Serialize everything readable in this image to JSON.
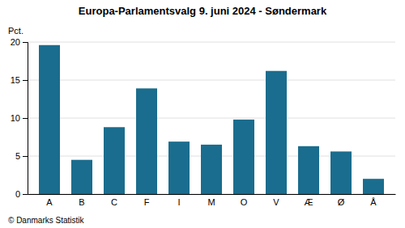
{
  "chart_data": {
    "type": "bar",
    "title": "Europa-Parlamentsvalg 9. juni 2024 - Søndermark",
    "categories": [
      "A",
      "B",
      "C",
      "F",
      "I",
      "M",
      "O",
      "V",
      "Æ",
      "Ø",
      "Å"
    ],
    "values": [
      19.6,
      4.5,
      8.8,
      13.9,
      6.9,
      6.5,
      9.8,
      16.2,
      6.3,
      5.6,
      2.0
    ],
    "color": "#1a6d8e",
    "ylabel": "Pct.",
    "footer": "© Danmarks Statistik",
    "ylim": [
      0,
      20
    ],
    "yticks": [
      0,
      5,
      10,
      15,
      20
    ],
    "grid": true
  }
}
